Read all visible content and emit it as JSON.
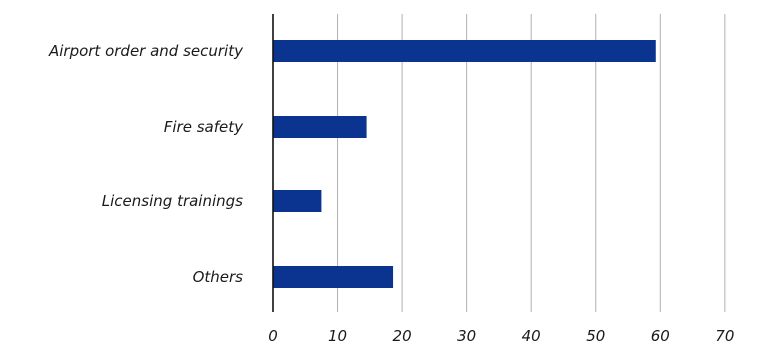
{
  "chart_data": {
    "type": "bar",
    "orientation": "horizontal",
    "categories": [
      "Airport order and security",
      "Fire safety",
      "Licensing trainings",
      "Others"
    ],
    "values": [
      59.3,
      14.5,
      7.5,
      18.6
    ],
    "xlim": [
      0,
      70
    ],
    "xticks": [
      "0",
      "10",
      "20",
      "30",
      "40",
      "50",
      "60",
      "70"
    ],
    "title": "",
    "xlabel": "",
    "ylabel": "",
    "grid": "vertical",
    "legend": "none",
    "bar_color": "#0b3490"
  }
}
